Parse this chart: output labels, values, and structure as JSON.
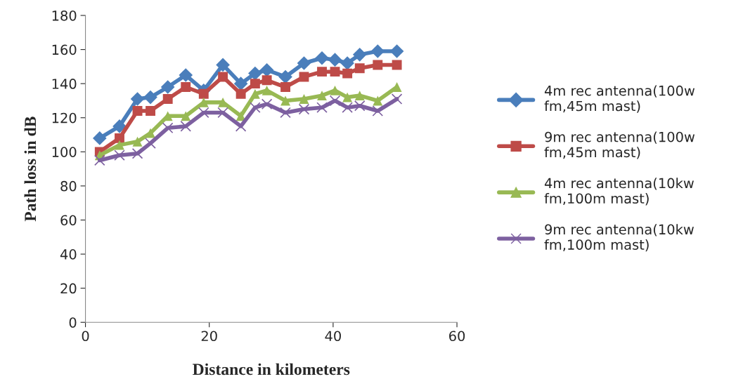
{
  "chart_data": {
    "type": "line",
    "xlabel": "Distance in kilometers",
    "ylabel": "Path loss in dB",
    "x": [
      2.3,
      5.5,
      8.4,
      10.5,
      13.3,
      16.2,
      19.1,
      22.2,
      25.1,
      27.4,
      29.3,
      32.3,
      35.3,
      38.2,
      40.3,
      42.3,
      44.3,
      47.2,
      50.3
    ],
    "series": [
      {
        "name": "4m rec antenna(100w\nfm,45m mast)",
        "color": "#4a7ebb",
        "marker": "diamond",
        "values": [
          108,
          115,
          131,
          132,
          138,
          145,
          136,
          151,
          140,
          146,
          148,
          144,
          152,
          155,
          154,
          152,
          157,
          159,
          159
        ]
      },
      {
        "name": "9m rec antenna(100w\nfm,45m mast)",
        "color": "#be4b48",
        "marker": "square",
        "values": [
          100,
          108,
          124,
          124,
          131,
          138,
          134,
          144,
          134,
          140,
          142,
          138,
          144,
          147,
          147,
          146,
          149,
          151,
          151
        ]
      },
      {
        "name": "4m rec antenna(10kw\nfm,100m mast)",
        "color": "#98b954",
        "marker": "triangle",
        "values": [
          98,
          104,
          106,
          111,
          121,
          121,
          129,
          129,
          121,
          134,
          136,
          130,
          131,
          133,
          136,
          132,
          133,
          130,
          138
        ]
      },
      {
        "name": "9m rec antenna(10kw\nfm,100m mast)",
        "color": "#7d60a0",
        "marker": "cross",
        "values": [
          95,
          98,
          99,
          105,
          114,
          115,
          123,
          123,
          115,
          126,
          128,
          123,
          125,
          126,
          130,
          126,
          127,
          124,
          131
        ]
      }
    ],
    "xlim": [
      0,
      60
    ],
    "xticks": [
      0,
      20,
      40,
      60
    ],
    "ylim": [
      0,
      180
    ],
    "yticks": [
      0,
      20,
      40,
      60,
      80,
      100,
      120,
      140,
      160,
      180
    ],
    "grid": false,
    "legend": "right"
  }
}
